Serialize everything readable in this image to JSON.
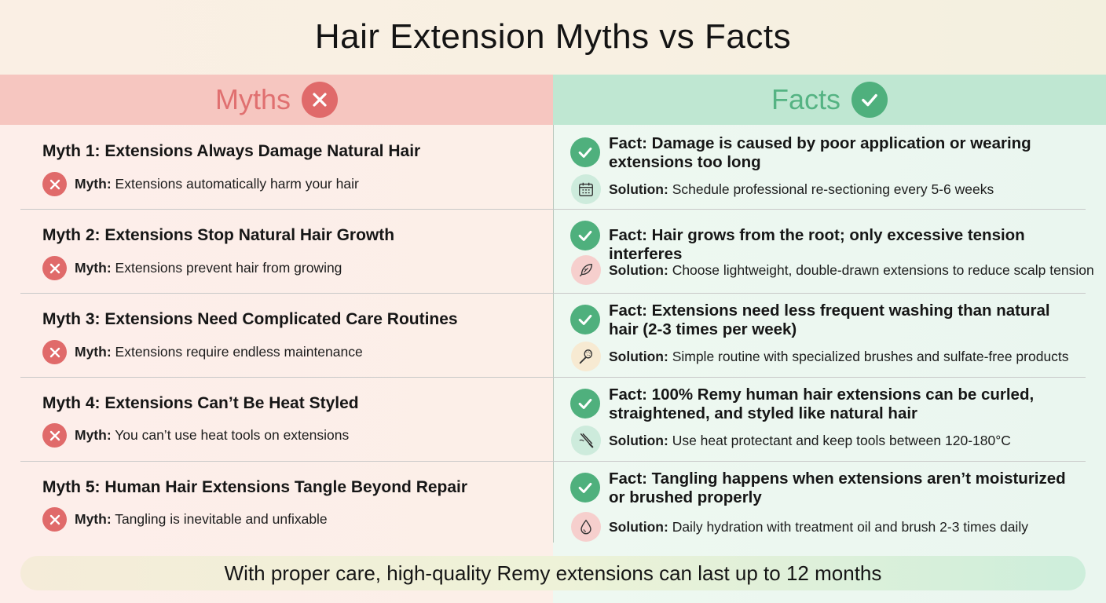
{
  "title": "Hair Extension Myths vs Facts",
  "headers": {
    "myths": "Myths",
    "facts": "Facts"
  },
  "myth_prefix": "Myth:",
  "solution_prefix": "Solution:",
  "colors": {
    "myth_accent": "#e06a6a",
    "fact_accent": "#4fb07d"
  },
  "rows": [
    {
      "myth_title": "Myth 1: Extensions Always Damage Natural Hair",
      "myth_text": "Extensions automatically harm your hair",
      "fact": "Fact: Damage is caused by poor application or wearing extensions too long",
      "solution": "Schedule professional re-sectioning every 5-6 weeks",
      "icon": "calendar-icon"
    },
    {
      "myth_title": "Myth 2: Extensions Stop Natural Hair Growth",
      "myth_text": "Extensions prevent hair from growing",
      "fact": "Fact: Hair grows from the root; only excessive tension interferes",
      "solution": "Choose lightweight, double-drawn extensions to reduce scalp tension",
      "icon": "feather-icon"
    },
    {
      "myth_title": "Myth 3: Extensions Need Complicated Care Routines",
      "myth_text": "Extensions require endless maintenance",
      "fact": "Fact: Extensions need less frequent washing than natural hair (2-3 times per week)",
      "solution": "Simple routine with specialized brushes and sulfate-free products",
      "icon": "brush-icon"
    },
    {
      "myth_title": "Myth 4: Extensions Can’t Be Heat Styled",
      "myth_text": "You can’t use heat tools on extensions",
      "fact": "Fact: 100% Remy human hair extensions can be curled, straightened, and styled like natural hair",
      "solution": "Use heat protectant and keep tools between 120-180°C",
      "icon": "flat-iron-icon"
    },
    {
      "myth_title": "Myth 5: Human Hair Extensions Tangle Beyond Repair",
      "myth_text": "Tangling is inevitable and unfixable",
      "fact": "Fact: Tangling happens when extensions aren’t moisturized or brushed properly",
      "solution": "Daily hydration with treatment oil and brush 2-3 times daily",
      "icon": "droplet-icon"
    }
  ],
  "footer": "With proper care, high-quality Remy extensions can last up to 12 months"
}
